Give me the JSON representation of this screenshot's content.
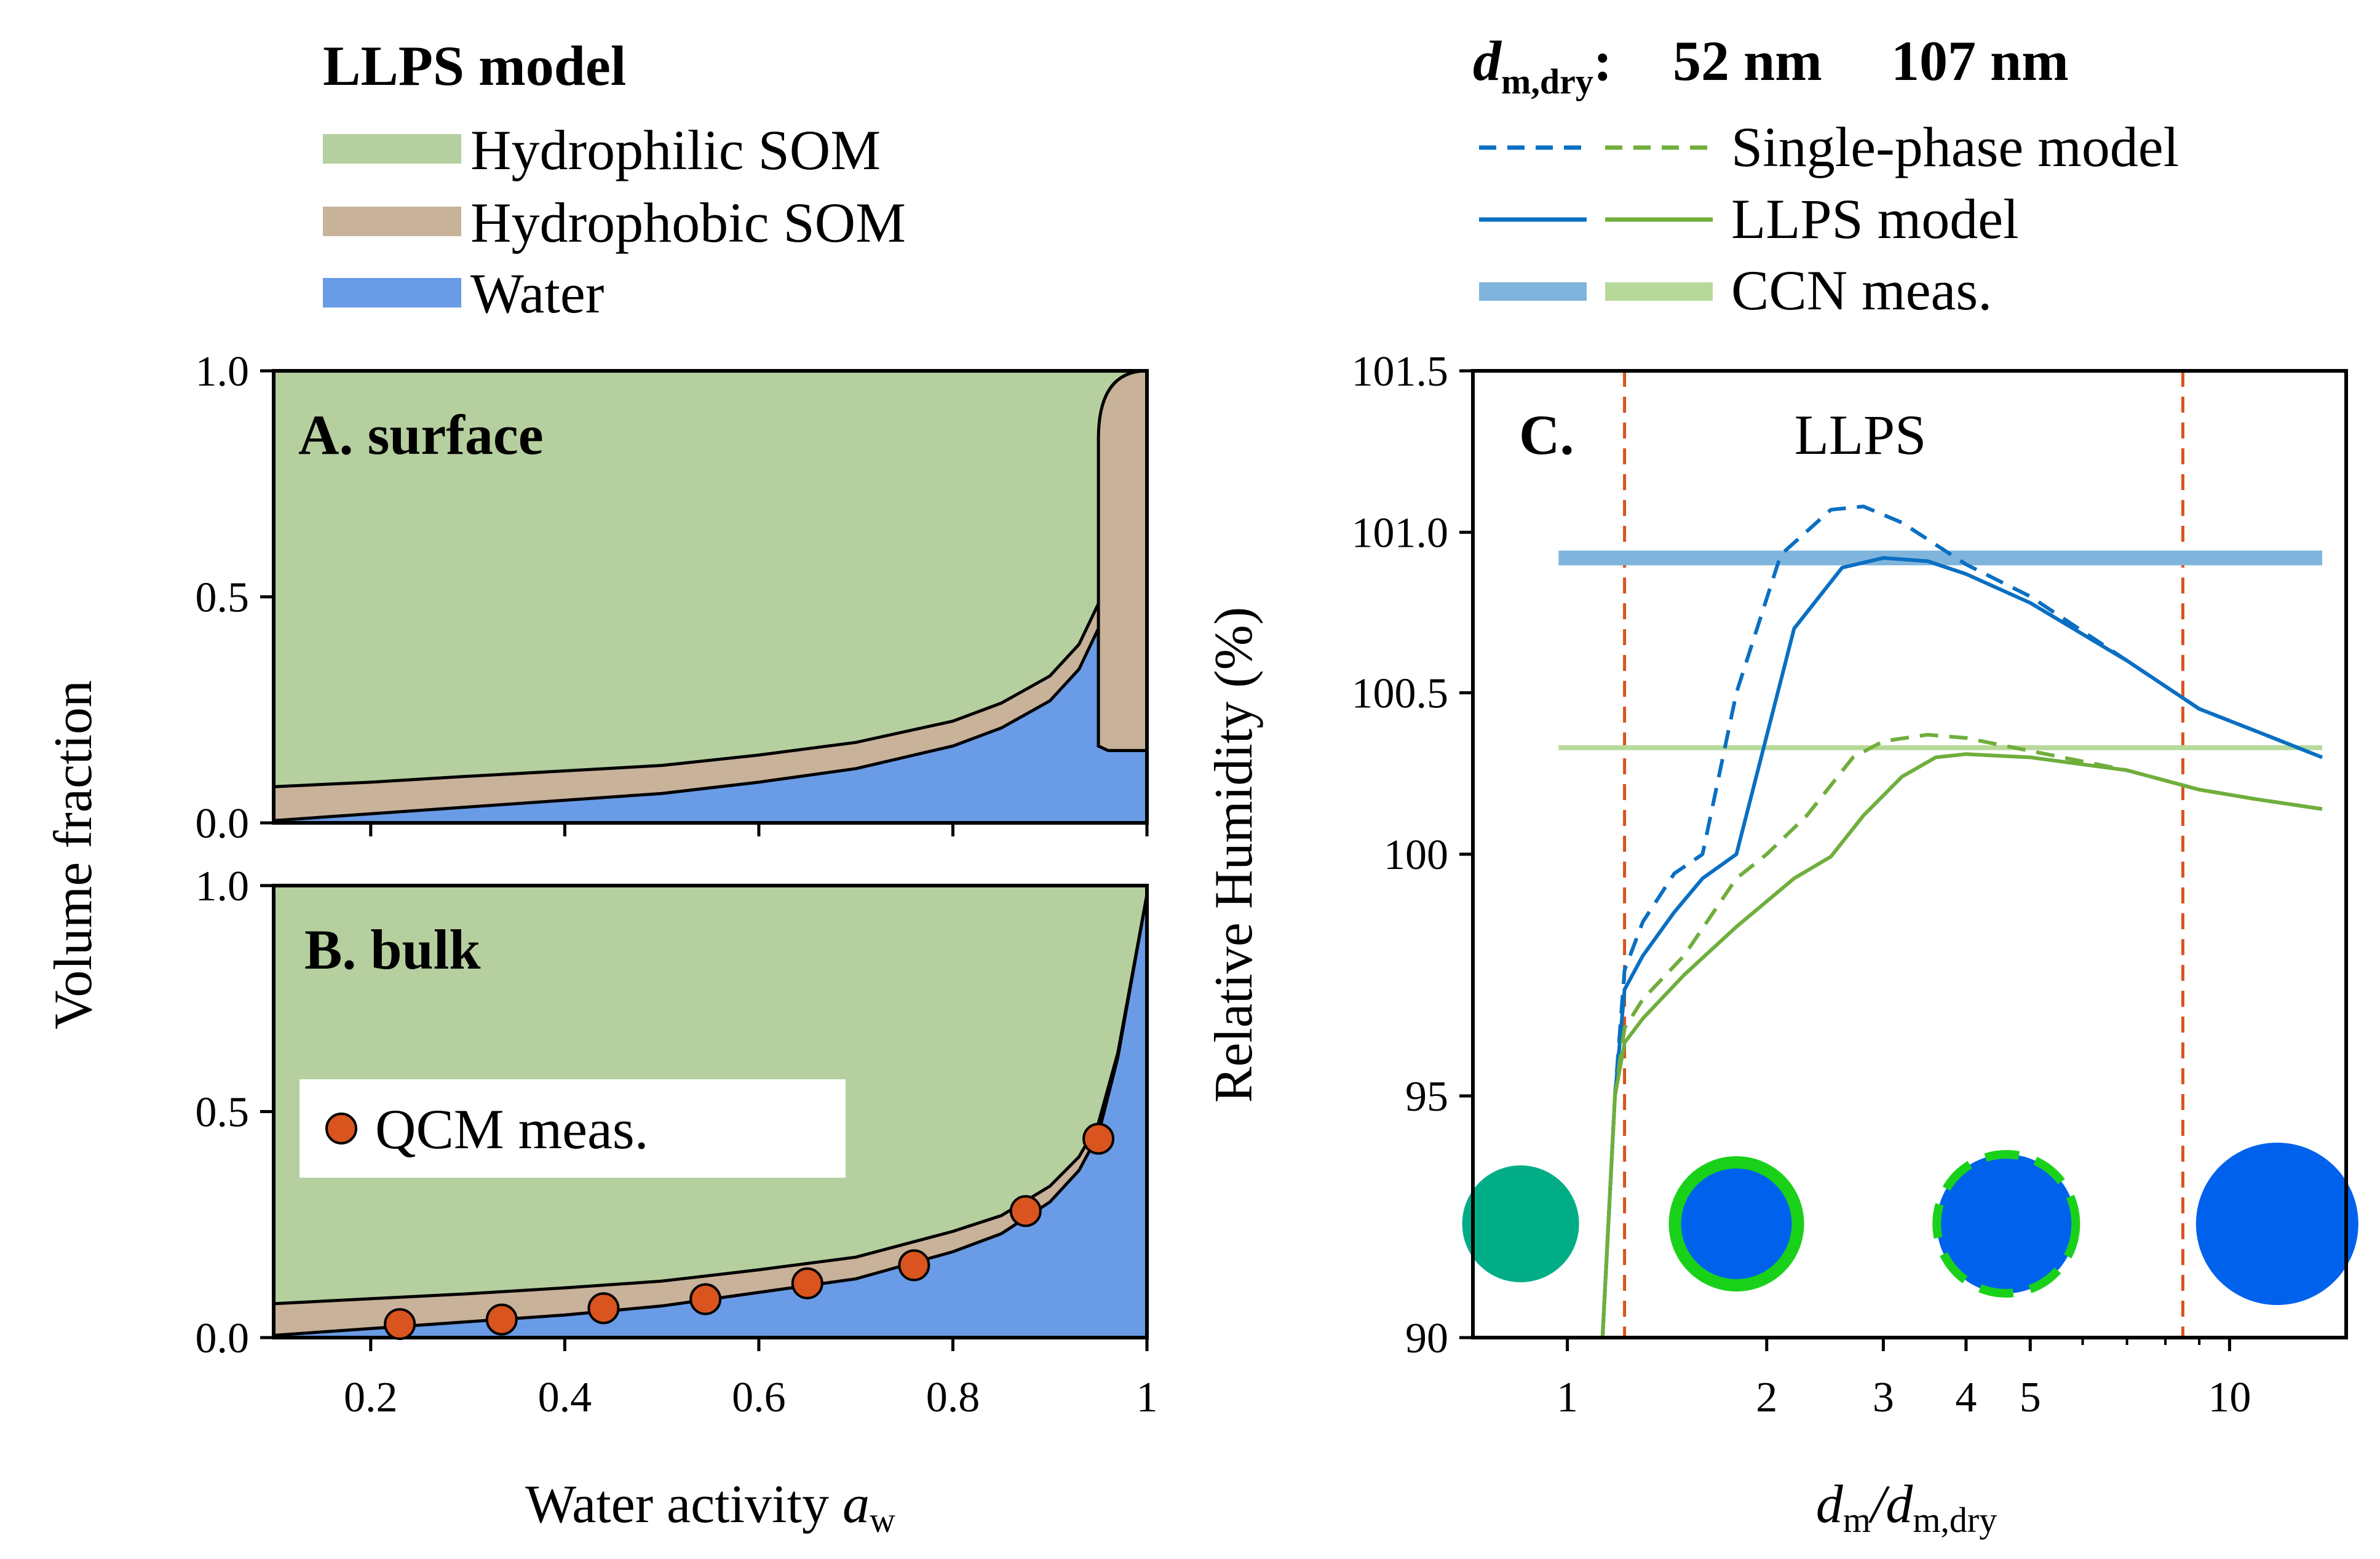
{
  "legend_left": {
    "title": "LLPS model",
    "items": [
      {
        "label": "Hydrophilic SOM",
        "color": "#b5cf9e"
      },
      {
        "label": "Hydrophobic SOM",
        "color": "#c9b29a"
      },
      {
        "label": "Water",
        "color": "#6a9be6"
      }
    ]
  },
  "legend_right": {
    "title_main": "d",
    "title_sub": "m,dry",
    "title_colon": ":",
    "size_blue": "52 nm",
    "size_green": "107 nm",
    "items": [
      {
        "label": "Single-phase model",
        "style": "dashed"
      },
      {
        "label": "LLPS model",
        "style": "solid"
      },
      {
        "label": "CCN meas.",
        "style": "thick"
      }
    ]
  },
  "colors": {
    "blue": "#0a6fc2",
    "green": "#6fae3c",
    "blue_ccn": "#7fb5dd",
    "green_ccn": "#b7d99a",
    "llps_line": "#d9541e",
    "marker": "#d9541e",
    "particle_core": "#0062ec",
    "particle_ring": "#1ad11a",
    "particle_dry": "#00ad87"
  },
  "y_axis_label_left": "Volume fraction",
  "x_axis_label_left": {
    "main": "Water activity ",
    "var": "a",
    "sub": "w"
  },
  "chart_data": [
    {
      "panel": "A",
      "title": "A. surface",
      "type": "area",
      "xlim": [
        0.1,
        1.0
      ],
      "ylim": [
        0.0,
        1.0
      ],
      "yticks": [
        "0.0",
        "0.5",
        "1.0"
      ],
      "x": [
        0.1,
        0.2,
        0.3,
        0.4,
        0.5,
        0.6,
        0.7,
        0.8,
        0.85,
        0.9,
        0.93,
        0.95
      ],
      "series": [
        {
          "name": "Water",
          "values": [
            0.005,
            0.02,
            0.035,
            0.05,
            0.065,
            0.09,
            0.12,
            0.17,
            0.21,
            0.27,
            0.34,
            0.43
          ]
        },
        {
          "name": "Hydrophobic SOM",
          "values": [
            0.075,
            0.07,
            0.068,
            0.065,
            0.062,
            0.06,
            0.058,
            0.055,
            0.055,
            0.055,
            0.055,
            0.055
          ]
        }
      ],
      "jump": {
        "x": [
          0.95,
          0.96,
          1.0
        ],
        "water": [
          0.17,
          0.16,
          0.16
        ],
        "hydrophobic_top": [
          0.85,
          0.95,
          1.0
        ]
      }
    },
    {
      "panel": "B",
      "title": "B. bulk",
      "type": "area",
      "xlim": [
        0.1,
        1.0
      ],
      "ylim": [
        0.0,
        1.0
      ],
      "yticks": [
        "0.0",
        "0.5",
        "1.0"
      ],
      "xticks": [
        "0.2",
        "0.4",
        "0.6",
        "0.8",
        "1"
      ],
      "x": [
        0.1,
        0.2,
        0.3,
        0.4,
        0.5,
        0.6,
        0.7,
        0.8,
        0.85,
        0.9,
        0.93,
        0.95,
        0.97,
        1.0
      ],
      "series": [
        {
          "name": "Water",
          "values": [
            0.005,
            0.02,
            0.035,
            0.05,
            0.07,
            0.1,
            0.13,
            0.19,
            0.23,
            0.3,
            0.37,
            0.45,
            0.62,
            0.98
          ]
        },
        {
          "name": "Hydrophobic SOM",
          "values": [
            0.07,
            0.066,
            0.062,
            0.06,
            0.055,
            0.05,
            0.048,
            0.045,
            0.04,
            0.035,
            0.03,
            0.025,
            0.01,
            0.0
          ]
        }
      ],
      "scatter": {
        "name": "QCM meas.",
        "x": [
          0.23,
          0.335,
          0.44,
          0.545,
          0.65,
          0.76,
          0.875,
          0.95
        ],
        "y": [
          0.03,
          0.04,
          0.065,
          0.085,
          0.12,
          0.16,
          0.28,
          0.44
        ]
      }
    },
    {
      "panel": "C",
      "title": "C.",
      "type": "line",
      "annotation": "LLPS",
      "xscale": "log",
      "xlim": [
        0.72,
        15.0
      ],
      "ylabel": "Relative Humidity (%)",
      "xlabel": {
        "main": "d",
        "sub1": "m",
        "slash": "/d",
        "sub2": "m,dry"
      },
      "xticks": [
        {
          "value": 1,
          "label": "1"
        },
        {
          "value": 2,
          "label": "2"
        },
        {
          "value": 3,
          "label": "3"
        },
        {
          "value": 4,
          "label": "4"
        },
        {
          "value": 5,
          "label": "5"
        },
        {
          "value": 10,
          "label": "10"
        }
      ],
      "yticks": [
        "90",
        "95",
        "100",
        "100.5",
        "101.0",
        "101.5"
      ],
      "llps_bounds": [
        1.22,
        8.5
      ],
      "ccn": {
        "blue": 100.92,
        "green": 100.33,
        "x_range": [
          0.97,
          13.8
        ]
      },
      "series": [
        {
          "color": "blue",
          "style": "dashed",
          "x": [
            1.13,
            1.18,
            1.22,
            1.3,
            1.45,
            1.6,
            1.8,
            2.1,
            2.5,
            2.8,
            3.2,
            4.0,
            5.0,
            7.0,
            9.0,
            11.0,
            13.8
          ],
          "y": [
            90.0,
            95.0,
            97.6,
            98.6,
            99.6,
            100.0,
            100.5,
            100.93,
            101.07,
            101.08,
            101.03,
            100.9,
            100.8,
            100.6,
            100.45,
            100.38,
            100.3
          ]
        },
        {
          "color": "blue",
          "style": "solid",
          "x": [
            1.13,
            1.18,
            1.22,
            1.3,
            1.45,
            1.6,
            1.8,
            2.2,
            2.6,
            3.0,
            3.5,
            4.0,
            5.0,
            7.0,
            9.0,
            11.0,
            13.8
          ],
          "y": [
            90.0,
            95.0,
            97.2,
            97.9,
            98.8,
            99.5,
            100.0,
            100.7,
            100.89,
            100.92,
            100.91,
            100.87,
            100.78,
            100.6,
            100.45,
            100.38,
            100.3
          ]
        },
        {
          "color": "green",
          "style": "dashed",
          "x": [
            1.13,
            1.18,
            1.22,
            1.3,
            1.5,
            1.8,
            2.0,
            2.3,
            2.7,
            3.0,
            3.5,
            4.0,
            5.0,
            7.0,
            9.0,
            11.0,
            13.8
          ],
          "y": [
            90.0,
            95.0,
            96.4,
            97.0,
            97.9,
            99.5,
            100.0,
            100.12,
            100.3,
            100.35,
            100.37,
            100.36,
            100.32,
            100.26,
            100.2,
            100.17,
            100.14
          ]
        },
        {
          "color": "green",
          "style": "solid",
          "x": [
            1.13,
            1.18,
            1.22,
            1.3,
            1.5,
            1.8,
            2.2,
            2.5,
            2.8,
            3.2,
            3.6,
            4.0,
            5.0,
            7.0,
            9.0,
            11.0,
            13.8
          ],
          "y": [
            90.0,
            95.0,
            96.1,
            96.6,
            97.5,
            98.5,
            99.5,
            99.95,
            100.12,
            100.24,
            100.3,
            100.31,
            100.3,
            100.26,
            100.2,
            100.17,
            100.14
          ]
        }
      ],
      "particles": [
        {
          "x": 0.85,
          "type": "dry"
        },
        {
          "x": 1.8,
          "type": "ring"
        },
        {
          "x": 4.6,
          "type": "dashed_ring"
        },
        {
          "x": 11.8,
          "type": "full"
        }
      ]
    }
  ]
}
